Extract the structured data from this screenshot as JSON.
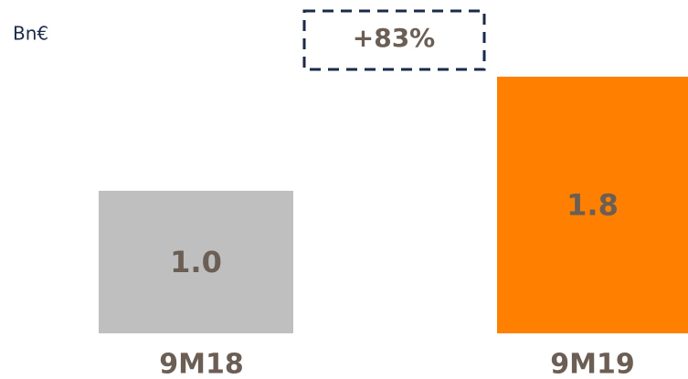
{
  "chart_data": {
    "type": "bar",
    "unit_label": "Bn€",
    "annotation": "+83%",
    "categories": [
      "9M18",
      "9M19"
    ],
    "values": [
      1.0,
      1.8
    ],
    "value_labels": [
      "1.0",
      "1.8"
    ],
    "colors": [
      "#bfbfbf",
      "#ff8000"
    ]
  }
}
